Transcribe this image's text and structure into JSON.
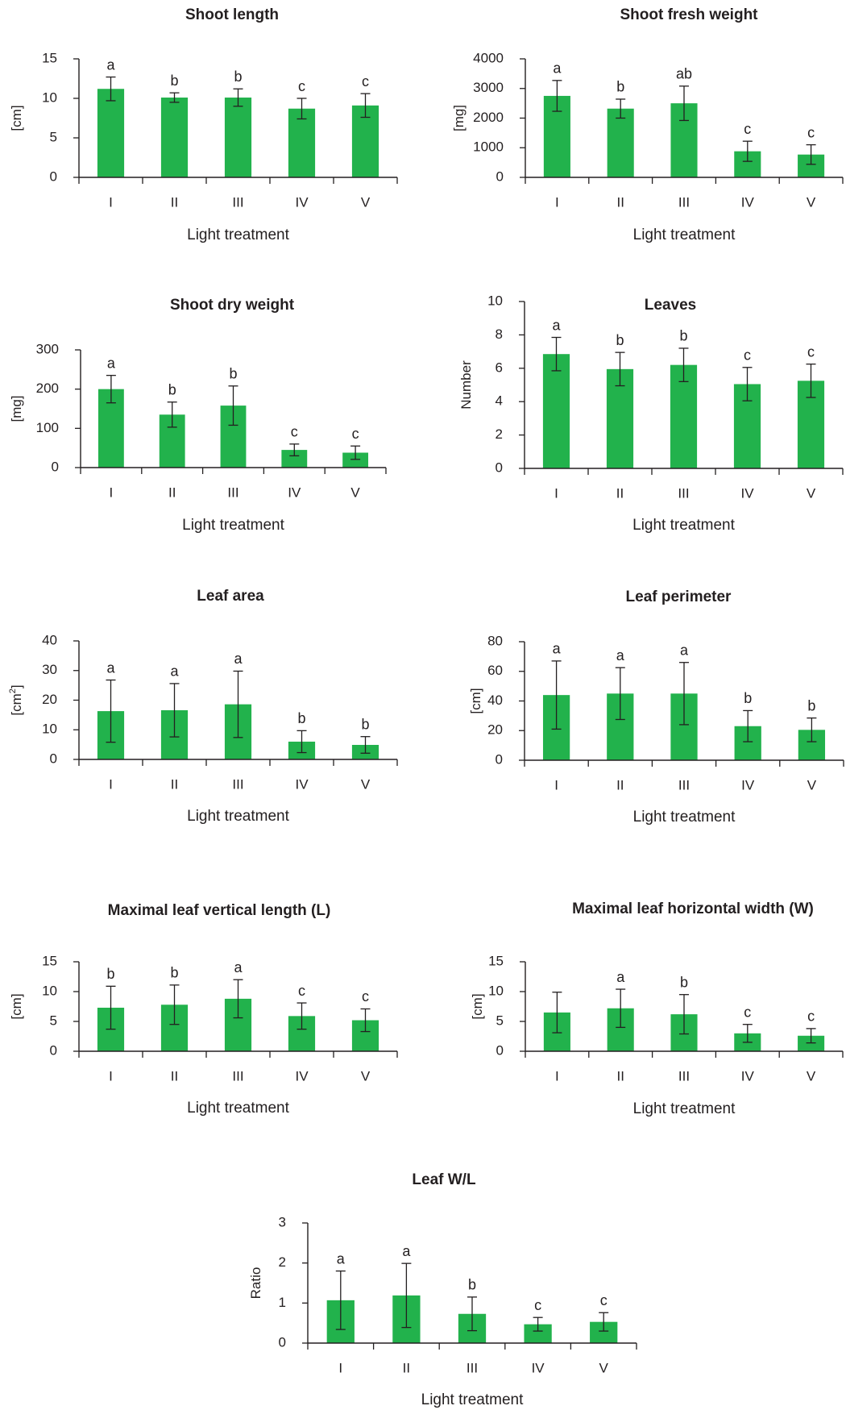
{
  "colors": {
    "bar": "#22b24c",
    "axis": "#231f20",
    "text": "#231f20"
  },
  "chart_data": [
    {
      "type": "bar",
      "title": "Shoot length",
      "ylabel": "[cm]",
      "xlabel": "Light treatment",
      "categories": [
        "I",
        "II",
        "III",
        "IV",
        "V"
      ],
      "values": [
        11.2,
        10.1,
        10.1,
        8.7,
        9.1
      ],
      "errors": [
        1.5,
        0.6,
        1.1,
        1.3,
        1.5
      ],
      "letters": [
        "a",
        "b",
        "b",
        "c",
        "c"
      ],
      "ylim": [
        0,
        15
      ],
      "yticks": [
        "0",
        "5",
        "10",
        "15"
      ]
    },
    {
      "type": "bar",
      "title": "Shoot fresh weight",
      "ylabel": "[mg]",
      "xlabel": "Light treatment",
      "categories": [
        "I",
        "II",
        "III",
        "IV",
        "V"
      ],
      "values": [
        2750,
        2320,
        2500,
        880,
        770
      ],
      "errors": [
        520,
        320,
        580,
        340,
        330
      ],
      "letters": [
        "a",
        "b",
        "ab",
        "c",
        "c"
      ],
      "ylim": [
        0,
        4000
      ],
      "yticks": [
        "0",
        "1000",
        "2000",
        "3000",
        "4000"
      ]
    },
    {
      "type": "bar",
      "title": "Shoot dry weight",
      "ylabel": "[mg]",
      "xlabel": "Light treatment",
      "categories": [
        "I",
        "II",
        "III",
        "IV",
        "V"
      ],
      "values": [
        200,
        135,
        158,
        45,
        38
      ],
      "errors": [
        35,
        32,
        50,
        15,
        17
      ],
      "letters": [
        "a",
        "b",
        "b",
        "c",
        "c"
      ],
      "ylim": [
        0,
        300
      ],
      "yticks": [
        "0",
        "100",
        "200",
        "300"
      ]
    },
    {
      "type": "bar",
      "title": "Leaves",
      "ylabel": "Number",
      "xlabel": "Light treatment",
      "categories": [
        "I",
        "II",
        "III",
        "IV",
        "V"
      ],
      "values": [
        6.85,
        5.95,
        6.2,
        5.05,
        5.25
      ],
      "errors": [
        1.0,
        1.0,
        1.0,
        1.0,
        1.0
      ],
      "letters": [
        "a",
        "b",
        "b",
        "c",
        "c"
      ],
      "ylim": [
        0,
        10
      ],
      "yticks": [
        "0",
        "2",
        "4",
        "6",
        "8",
        "10"
      ]
    },
    {
      "type": "bar",
      "title": "Leaf area",
      "ylabel": "[cm",
      "ylabel_sup": "2",
      "ylabel_tail": "]",
      "xlabel": "Light treatment",
      "categories": [
        "I",
        "II",
        "III",
        "IV",
        "V"
      ],
      "values": [
        16.3,
        16.6,
        18.6,
        6.0,
        4.9
      ],
      "errors": [
        10.5,
        9.0,
        11.2,
        3.7,
        2.8
      ],
      "letters": [
        "a",
        "a",
        "a",
        "b",
        "b"
      ],
      "ylim": [
        0,
        40
      ],
      "yticks": [
        "0",
        "10",
        "20",
        "30",
        "40"
      ]
    },
    {
      "type": "bar",
      "title": "Leaf perimeter",
      "ylabel": "[cm]",
      "xlabel": "Light treatment",
      "categories": [
        "I",
        "II",
        "III",
        "IV",
        "V"
      ],
      "values": [
        44,
        45,
        45,
        23,
        20.5
      ],
      "errors": [
        23,
        17.5,
        21,
        10.5,
        8
      ],
      "letters": [
        "a",
        "a",
        "a",
        "b",
        "b"
      ],
      "ylim": [
        0,
        80
      ],
      "yticks": [
        "0",
        "20",
        "40",
        "60",
        "80"
      ]
    },
    {
      "type": "bar",
      "title": "Maximal leaf vertical length (L)",
      "ylabel": "[cm]",
      "xlabel": "Light treatment",
      "categories": [
        "I",
        "II",
        "III",
        "IV",
        "V"
      ],
      "values": [
        7.3,
        7.8,
        8.8,
        5.9,
        5.2
      ],
      "errors": [
        3.6,
        3.3,
        3.2,
        2.2,
        1.9
      ],
      "letters": [
        "b",
        "b",
        "a",
        "c",
        "c"
      ],
      "ylim": [
        0,
        15
      ],
      "yticks": [
        "0",
        "5",
        "10",
        "15"
      ]
    },
    {
      "type": "bar",
      "title": "Maximal leaf horizontal width (W)",
      "ylabel": "[cm]",
      "xlabel": "Light treatment",
      "categories": [
        "I",
        "II",
        "III",
        "IV",
        "V"
      ],
      "values": [
        6.5,
        7.2,
        6.2,
        3.0,
        2.6
      ],
      "errors": [
        3.4,
        3.2,
        3.3,
        1.5,
        1.2
      ],
      "letters": [
        "",
        "a",
        "b",
        "c",
        "c"
      ],
      "ylim": [
        0,
        15
      ],
      "yticks": [
        "0",
        "5",
        "10",
        "15"
      ]
    },
    {
      "type": "bar",
      "title": "Leaf W/L",
      "ylabel": "Ratio",
      "xlabel": "Light treatment",
      "categories": [
        "I",
        "II",
        "III",
        "IV",
        "V"
      ],
      "values": [
        1.07,
        1.19,
        0.73,
        0.47,
        0.53
      ],
      "errors": [
        0.73,
        0.8,
        0.42,
        0.17,
        0.23
      ],
      "letters": [
        "a",
        "a",
        "b",
        "c",
        "c"
      ],
      "ylim": [
        0,
        3
      ],
      "yticks": [
        "0",
        "1",
        "2",
        "3"
      ]
    }
  ]
}
